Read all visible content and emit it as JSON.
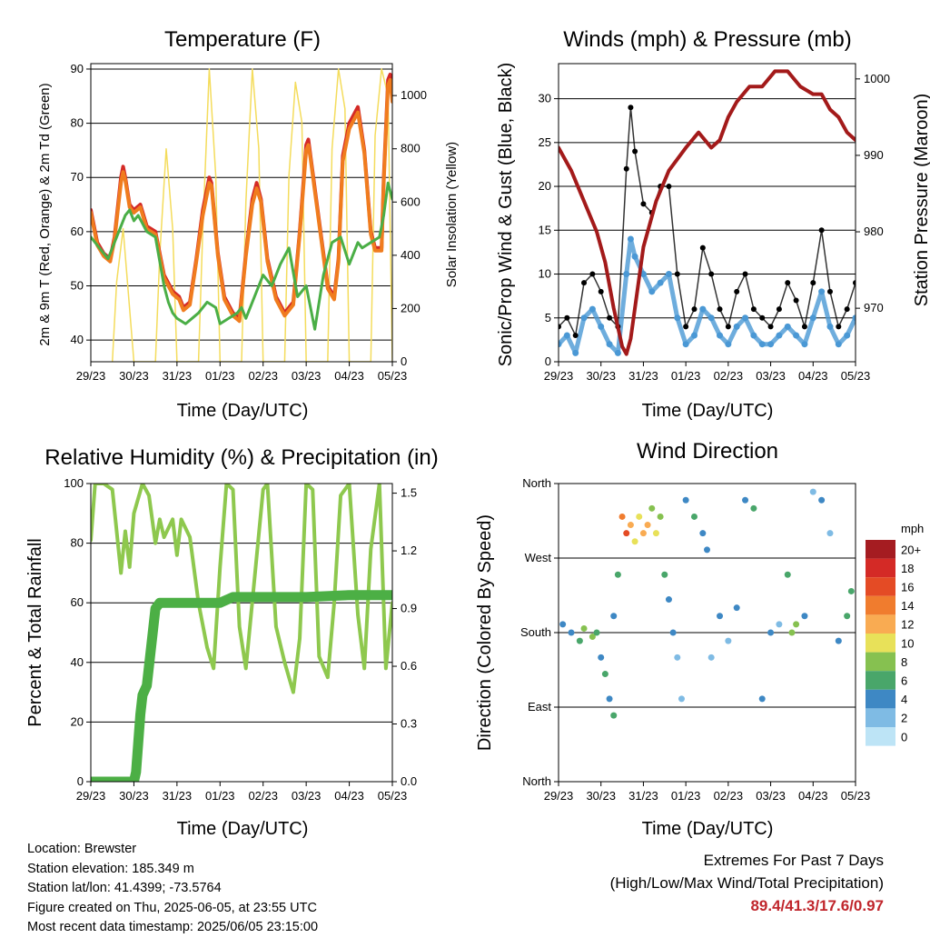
{
  "colors": {
    "temp_red": "#d42a26",
    "temp_orange": "#f07c1e",
    "dewpoint_green": "#4aae46",
    "solar_yellow": "#f4dc5c",
    "wind_blue": "#4a98d4",
    "gust_black": "#000000",
    "pressure_maroon": "#a31a1a",
    "rh_lightgreen": "#8ec84e",
    "precip_green": "#4caf45"
  },
  "x_ticks": [
    "29/23",
    "30/23",
    "31/23",
    "01/23",
    "02/23",
    "03/23",
    "04/23",
    "05/23"
  ],
  "x_label": "Time (Day/UTC)",
  "panels": {
    "temperature": {
      "title": "Temperature (F)",
      "ylabel": "2m & 9m T (Red, Orange) & 2m Td (Green)",
      "ylabel2": "Solar Insolation (Yellow)"
    },
    "winds": {
      "title": "Winds (mph) & Pressure (mb)",
      "ylabel": "Sonic/Prop Wind & Gust (Blue, Black)",
      "ylabel2": "Station Pressure (Maroon)"
    },
    "humidity": {
      "title": "Relative Humidity (%) & Precipitation (in)",
      "ylabel": "Percent & Total Rainfall"
    },
    "direction": {
      "title": "Wind Direction",
      "ylabel": "Direction (Colored By Speed)",
      "colorbar_title": "mph",
      "colorbar_labels": [
        "20+",
        "18",
        "16",
        "14",
        "12",
        "10",
        "8",
        "6",
        "4",
        "2",
        "0"
      ],
      "colorbar_colors": [
        "#a51c21",
        "#d42a26",
        "#e44b25",
        "#f07c2e",
        "#f9ab52",
        "#e8e159",
        "#86c150",
        "#49a66a",
        "#3e88c4",
        "#7fbbe4",
        "#bde4f6"
      ]
    }
  },
  "info": {
    "location": "Location: Brewster",
    "elevation": "Station elevation: 185.349 m",
    "latlon": "Station lat/lon: 41.4399; -73.5764",
    "created": "Figure created on Thu, 2025-06-05, at 23:55 UTC",
    "recent": "Most recent data timestamp: 2025/06/05 23:15:00"
  },
  "extremes": {
    "heading": "Extremes For Past 7 Days",
    "subheading": "(High/Low/Max Wind/Total Precipitation)",
    "values": "89.4/41.3/17.6/0.97"
  },
  "chart_data": [
    {
      "type": "line",
      "panel": "temperature",
      "title": "Temperature (F)",
      "xlabel": "Time (Day/UTC)",
      "ylabel": "2m & 9m T (Red, Orange) & 2m Td (Green)",
      "ylabel2": "Solar Insolation (Yellow)",
      "xlim": [
        0,
        7
      ],
      "ylim": [
        36,
        91
      ],
      "y_ticks": [
        40,
        50,
        60,
        70,
        80,
        90
      ],
      "y2lim": [
        0,
        1120
      ],
      "y2_ticks": [
        0,
        200,
        400,
        600,
        800,
        1000
      ],
      "series": [
        {
          "axis": "left",
          "color": "#d42a26",
          "x": [
            0,
            0.15,
            0.3,
            0.45,
            0.55,
            0.7,
            0.75,
            0.8,
            0.9,
            1.0,
            1.15,
            1.3,
            1.5,
            1.7,
            1.9,
            2.05,
            2.15,
            2.3,
            2.45,
            2.6,
            2.75,
            2.8,
            2.95,
            3.1,
            3.3,
            3.45,
            3.6,
            3.75,
            3.85,
            3.95,
            4.1,
            4.3,
            4.5,
            4.7,
            4.85,
            5.0,
            5.05,
            5.1,
            5.3,
            5.5,
            5.65,
            5.75,
            5.85,
            6.0,
            6.2,
            6.35,
            6.5,
            6.6,
            6.75,
            6.8,
            6.9,
            6.95,
            7.0
          ],
          "y": [
            64,
            58,
            56,
            55,
            59,
            70,
            72,
            70,
            65,
            64,
            65,
            61,
            60,
            52,
            49,
            48,
            46,
            47,
            55,
            64,
            70,
            69,
            56,
            48,
            45,
            44,
            56,
            66,
            69,
            66,
            55,
            48,
            45,
            47,
            60,
            76,
            77,
            74,
            62,
            50,
            48,
            55,
            74,
            80,
            83,
            75,
            60,
            57,
            57,
            70,
            88,
            89,
            85
          ]
        },
        {
          "axis": "left",
          "color": "#f07c1e",
          "x": [
            0,
            0.15,
            0.3,
            0.45,
            0.55,
            0.7,
            0.75,
            0.8,
            0.9,
            1.0,
            1.15,
            1.3,
            1.5,
            1.7,
            1.9,
            2.05,
            2.15,
            2.3,
            2.45,
            2.6,
            2.75,
            2.8,
            2.95,
            3.1,
            3.3,
            3.45,
            3.6,
            3.75,
            3.85,
            3.95,
            4.1,
            4.3,
            4.5,
            4.7,
            4.85,
            5.0,
            5.05,
            5.1,
            5.3,
            5.5,
            5.65,
            5.75,
            5.85,
            6.0,
            6.2,
            6.35,
            6.5,
            6.6,
            6.75,
            6.8,
            6.9,
            6.95,
            7.0
          ],
          "y": [
            63.5,
            57.5,
            55.5,
            54.5,
            58.5,
            69,
            71,
            69.5,
            64.5,
            63.5,
            64.5,
            60.5,
            59.5,
            51.5,
            48.5,
            47.5,
            45.5,
            46.5,
            54.5,
            63,
            69,
            68.5,
            55.5,
            47.5,
            44.5,
            43.5,
            55.5,
            65,
            68,
            65.5,
            54.5,
            47.5,
            44.5,
            46.5,
            59.5,
            75,
            76,
            73.5,
            61.5,
            49.5,
            47.5,
            54.5,
            73,
            79,
            82,
            74.5,
            59.5,
            56.5,
            56.5,
            69,
            87,
            88,
            84
          ]
        },
        {
          "axis": "left",
          "color": "#4aae46",
          "x": [
            0,
            0.2,
            0.4,
            0.6,
            0.8,
            0.9,
            1.0,
            1.1,
            1.3,
            1.5,
            1.7,
            1.8,
            1.9,
            2.0,
            2.2,
            2.35,
            2.5,
            2.7,
            2.9,
            3.0,
            3.2,
            3.4,
            3.5,
            3.6,
            3.8,
            4.0,
            4.2,
            4.4,
            4.6,
            4.8,
            5.0,
            5.2,
            5.4,
            5.6,
            5.8,
            6.0,
            6.2,
            6.3,
            6.5,
            6.7,
            6.8,
            6.9,
            7.0
          ],
          "y": [
            59,
            57,
            55,
            59,
            63,
            64,
            62,
            63,
            60,
            59,
            50,
            47,
            45,
            44,
            43,
            44,
            45,
            47,
            46,
            43,
            44,
            45,
            46,
            44,
            48,
            52,
            50,
            54,
            57,
            48,
            50,
            42,
            52,
            58,
            59,
            54,
            58,
            57,
            58,
            59,
            63,
            69,
            66
          ]
        },
        {
          "axis": "right",
          "color": "#f4dc5c",
          "x": [
            0.5,
            0.6,
            0.75,
            0.9,
            1.0,
            1.5,
            1.6,
            1.75,
            1.9,
            2.0,
            2.5,
            2.6,
            2.75,
            2.9,
            3.0,
            3.5,
            3.6,
            3.75,
            3.9,
            4.0,
            4.5,
            4.6,
            4.75,
            4.9,
            5.0,
            5.5,
            5.6,
            5.75,
            5.9,
            6.0,
            6.5,
            6.6,
            6.75,
            6.9,
            7.0
          ],
          "y": [
            0,
            300,
            500,
            200,
            0,
            0,
            400,
            800,
            500,
            0,
            0,
            500,
            1100,
            700,
            0,
            0,
            600,
            1100,
            800,
            0,
            0,
            700,
            1050,
            900,
            0,
            0,
            800,
            1100,
            950,
            0,
            0,
            850,
            1100,
            1000,
            0
          ]
        }
      ]
    },
    {
      "type": "scatter",
      "panel": "winds",
      "title": "Winds (mph) & Pressure (mb)",
      "xlabel": "Time (Day/UTC)",
      "ylabel": "Sonic/Prop Wind & Gust (Blue, Black)",
      "ylabel2": "Station Pressure (Maroon)",
      "xlim": [
        0,
        7
      ],
      "ylim": [
        0,
        34
      ],
      "y_ticks": [
        0,
        5,
        10,
        15,
        20,
        25,
        30
      ],
      "y2lim": [
        963,
        1002
      ],
      "y2_ticks": [
        970,
        980,
        990,
        1000
      ],
      "series": [
        {
          "name": "wind",
          "color": "#4a98d4",
          "x": [
            0,
            0.2,
            0.4,
            0.6,
            0.8,
            1.0,
            1.2,
            1.4,
            1.6,
            1.7,
            1.8,
            2.0,
            2.2,
            2.4,
            2.6,
            2.8,
            3.0,
            3.2,
            3.4,
            3.6,
            3.8,
            4.0,
            4.2,
            4.4,
            4.6,
            4.8,
            5.0,
            5.2,
            5.4,
            5.6,
            5.8,
            6.0,
            6.2,
            6.4,
            6.6,
            6.8,
            7.0
          ],
          "y": [
            2,
            3,
            1,
            5,
            6,
            4,
            2,
            1,
            10,
            14,
            12,
            10,
            8,
            9,
            10,
            5,
            2,
            3,
            6,
            5,
            3,
            2,
            4,
            5,
            3,
            2,
            2,
            3,
            4,
            3,
            2,
            5,
            8,
            4,
            2,
            3,
            5
          ]
        },
        {
          "name": "gust",
          "color": "#000000",
          "x": [
            0,
            0.2,
            0.4,
            0.6,
            0.8,
            1.0,
            1.2,
            1.4,
            1.6,
            1.7,
            1.8,
            2.0,
            2.2,
            2.4,
            2.6,
            2.8,
            3.0,
            3.2,
            3.4,
            3.6,
            3.8,
            4.0,
            4.2,
            4.4,
            4.6,
            4.8,
            5.0,
            5.2,
            5.4,
            5.6,
            5.8,
            6.0,
            6.2,
            6.4,
            6.6,
            6.8,
            7.0
          ],
          "y": [
            4,
            5,
            3,
            9,
            10,
            8,
            5,
            4,
            22,
            29,
            24,
            18,
            17,
            20,
            20,
            10,
            4,
            6,
            13,
            10,
            6,
            4,
            8,
            10,
            6,
            5,
            4,
            6,
            9,
            7,
            4,
            9,
            15,
            8,
            4,
            6,
            9
          ]
        },
        {
          "name": "pressure",
          "axis": "right",
          "color": "#a31a1a",
          "x": [
            0,
            0.3,
            0.6,
            0.9,
            1.1,
            1.3,
            1.5,
            1.6,
            1.7,
            1.8,
            2.0,
            2.3,
            2.6,
            3.0,
            3.3,
            3.6,
            3.8,
            4.0,
            4.2,
            4.5,
            4.8,
            5.1,
            5.4,
            5.7,
            6.0,
            6.2,
            6.4,
            6.6,
            6.8,
            7.0
          ],
          "y": [
            991,
            988,
            984,
            980,
            976,
            970,
            965,
            964,
            966,
            970,
            978,
            984,
            988,
            991,
            993,
            991,
            992,
            995,
            997,
            999,
            999,
            1001,
            1001,
            999,
            998,
            998,
            996,
            995,
            993,
            992
          ]
        }
      ]
    },
    {
      "type": "line",
      "panel": "humidity",
      "title": "Relative Humidity (%) & Precipitation (in)",
      "xlabel": "Time (Day/UTC)",
      "ylabel": "Percent & Total Rainfall",
      "xlim": [
        0,
        7
      ],
      "ylim": [
        0,
        100
      ],
      "y_ticks": [
        0,
        20,
        40,
        60,
        80,
        100
      ],
      "y2lim": [
        0,
        1.55
      ],
      "y2_ticks": [
        0.0,
        0.3,
        0.6,
        0.9,
        1.2,
        1.5
      ],
      "series": [
        {
          "axis": "left",
          "color": "#8ec84e",
          "x": [
            0,
            0.1,
            0.3,
            0.5,
            0.7,
            0.8,
            0.9,
            1.0,
            1.2,
            1.35,
            1.5,
            1.6,
            1.7,
            1.9,
            2.0,
            2.1,
            2.3,
            2.5,
            2.7,
            2.85,
            3.0,
            3.15,
            3.3,
            3.45,
            3.6,
            3.8,
            4.0,
            4.1,
            4.3,
            4.5,
            4.7,
            4.85,
            5.0,
            5.15,
            5.3,
            5.5,
            5.65,
            5.8,
            6.0,
            6.2,
            6.35,
            6.5,
            6.7,
            6.85,
            7.0
          ],
          "y": [
            81,
            100,
            100,
            98,
            70,
            84,
            72,
            90,
            100,
            96,
            80,
            88,
            82,
            88,
            76,
            88,
            82,
            60,
            45,
            38,
            72,
            100,
            98,
            52,
            38,
            68,
            98,
            100,
            52,
            40,
            30,
            48,
            100,
            98,
            42,
            35,
            60,
            96,
            100,
            56,
            38,
            78,
            100,
            38,
            60
          ]
        },
        {
          "axis": "right",
          "color": "#4caf45",
          "x": [
            0,
            0.9,
            1.0,
            1.05,
            1.1,
            1.15,
            1.2,
            1.3,
            1.4,
            1.5,
            1.6,
            2.0,
            2.5,
            3.0,
            3.2,
            3.3,
            4.0,
            5.0,
            6.0,
            7.0
          ],
          "y": [
            0,
            0,
            0,
            0.05,
            0.2,
            0.35,
            0.45,
            0.5,
            0.7,
            0.9,
            0.93,
            0.93,
            0.93,
            0.93,
            0.95,
            0.96,
            0.96,
            0.96,
            0.97,
            0.97
          ]
        }
      ]
    },
    {
      "type": "scatter",
      "panel": "direction",
      "title": "Wind Direction",
      "xlabel": "Time (Day/UTC)",
      "ylabel": "Direction (Colored By Speed)",
      "xlim": [
        0,
        7
      ],
      "ylim": [
        0,
        360
      ],
      "y_tick_labels": [
        "North",
        "East",
        "South",
        "West",
        "North"
      ],
      "y_tick_values": [
        0,
        90,
        180,
        270,
        360
      ],
      "colorbar": {
        "label": "mph",
        "min": 0,
        "max": 20
      },
      "points": {
        "x": [
          0.1,
          0.3,
          0.5,
          0.6,
          0.8,
          0.9,
          1.0,
          1.1,
          1.2,
          1.3,
          1.3,
          1.4,
          1.5,
          1.6,
          1.7,
          1.8,
          1.9,
          2.0,
          2.1,
          2.2,
          2.3,
          2.4,
          2.5,
          2.6,
          2.7,
          2.8,
          2.9,
          3.0,
          3.2,
          3.4,
          3.5,
          3.6,
          3.8,
          4.0,
          4.2,
          4.4,
          4.6,
          4.8,
          5.0,
          5.2,
          5.4,
          5.5,
          5.6,
          5.8,
          6.0,
          6.2,
          6.4,
          6.6,
          6.8,
          6.9
        ],
        "y": [
          190,
          180,
          170,
          185,
          175,
          180,
          150,
          130,
          100,
          80,
          200,
          250,
          320,
          300,
          310,
          290,
          320,
          300,
          310,
          330,
          300,
          320,
          250,
          220,
          180,
          150,
          100,
          340,
          320,
          300,
          280,
          150,
          200,
          170,
          210,
          340,
          330,
          100,
          180,
          190,
          250,
          180,
          190,
          200,
          350,
          340,
          300,
          170,
          200,
          230
        ],
        "speed": [
          3,
          4,
          5,
          7,
          7,
          6,
          4,
          5,
          4,
          6,
          3,
          5,
          13,
          15,
          12,
          10,
          9,
          11,
          12,
          8,
          9,
          7,
          5,
          4,
          3,
          2,
          2,
          4,
          5,
          4,
          3,
          2,
          3,
          2,
          4,
          3,
          5,
          4,
          3,
          2,
          6,
          8,
          7,
          4,
          2,
          3,
          2,
          4,
          5,
          6
        ]
      }
    }
  ]
}
